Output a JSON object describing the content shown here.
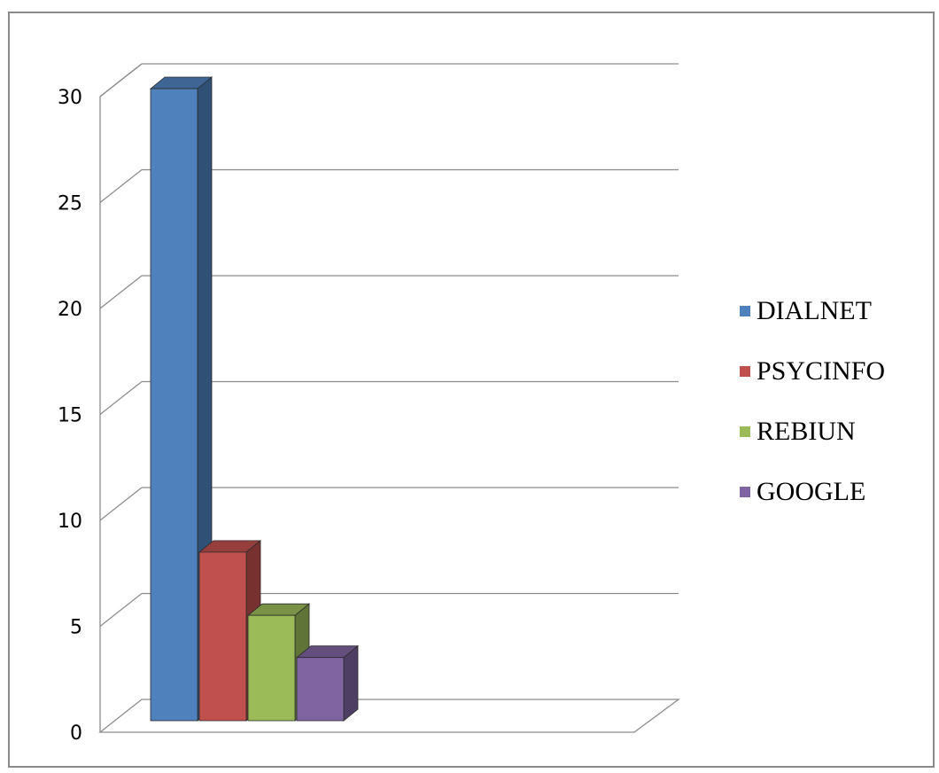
{
  "chart_data": {
    "type": "bar",
    "style": "3d-clustered-column",
    "categories": [
      ""
    ],
    "series": [
      {
        "name": "DIALNET",
        "values": [
          30
        ],
        "color": "#4F81BD"
      },
      {
        "name": "PSYCINFO",
        "values": [
          8
        ],
        "color": "#C0504D"
      },
      {
        "name": "REBIUN",
        "values": [
          5
        ],
        "color": "#9BBB59"
      },
      {
        "name": "GOOGLE",
        "values": [
          3
        ],
        "color": "#8064A2"
      }
    ],
    "ylim": [
      0,
      30
    ],
    "y_ticks": [
      "0",
      "5",
      "10",
      "15",
      "20",
      "25",
      "30"
    ],
    "grid": true,
    "legend_position": "right",
    "title": "",
    "xlabel": "",
    "ylabel": ""
  }
}
